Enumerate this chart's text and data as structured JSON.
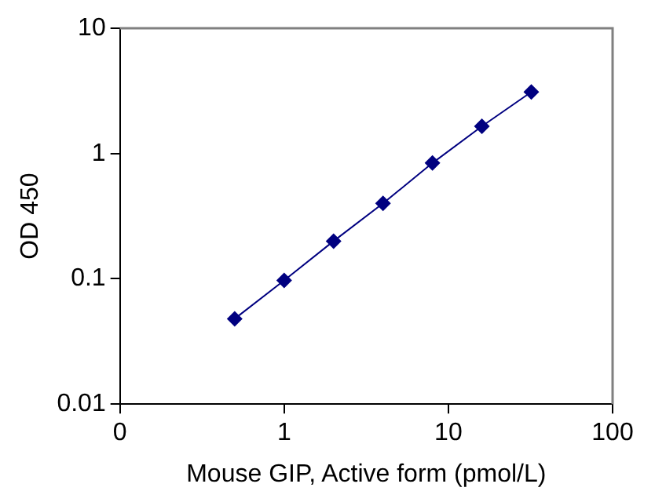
{
  "chart_data": {
    "type": "line",
    "xlabel": "Mouse GIP, Active form (pmol/L)",
    "ylabel": "OD 450",
    "x": [
      0.5,
      1,
      2,
      4,
      8,
      16,
      32
    ],
    "series": [
      {
        "color": "#000080",
        "values": [
          0.048,
          0.097,
          0.2,
          0.4,
          0.84,
          1.65,
          3.1
        ]
      }
    ],
    "log": "xy",
    "xlim": [
      0.1,
      100
    ],
    "xticks": [
      {
        "value": 0.1,
        "label": "0"
      },
      1,
      10,
      100
    ],
    "ylim": [
      0.01,
      10
    ],
    "yticks": [
      0.01,
      0.1,
      1,
      10
    ],
    "grid": false,
    "legend": false,
    "marker": "diamond",
    "line_style": "solid"
  }
}
